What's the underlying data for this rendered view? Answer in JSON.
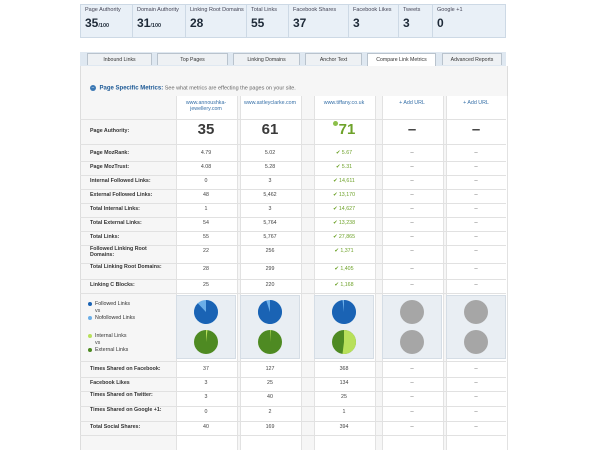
{
  "stats": [
    {
      "label": "Page Authority",
      "value": "35",
      "suffix": "/100"
    },
    {
      "label": "Domain Authority",
      "value": "31",
      "suffix": "/100"
    },
    {
      "label": "Linking Root Domains",
      "value": "28",
      "suffix": ""
    },
    {
      "label": "Total Links",
      "value": "55",
      "suffix": ""
    },
    {
      "label": "Facebook Shares",
      "value": "37",
      "suffix": ""
    },
    {
      "label": "Facebook Likes",
      "value": "3",
      "suffix": ""
    },
    {
      "label": "Tweets",
      "value": "3",
      "suffix": ""
    },
    {
      "label": "Google +1",
      "value": "0",
      "suffix": ""
    }
  ],
  "tabs": [
    "Inbound Links",
    "Top Pages",
    "Linking Domains",
    "Anchor Text",
    "Compare Link Metrics",
    "Advanced Reports"
  ],
  "active_tab": "Compare Link Metrics",
  "section": {
    "collapse_icon": "minus",
    "title": "Page Specific Metrics:",
    "description": "See what metrics are effecting the pages on your site."
  },
  "columns": [
    {
      "line1": "www.annoushka-",
      "line2": "jewellery.com"
    },
    {
      "line1": "www.astleyclarke.com",
      "line2": ""
    },
    {
      "line1": "www.tiffany.co.uk",
      "line2": ""
    },
    {
      "line1": "+ Add URL",
      "line2": ""
    },
    {
      "line1": "+ Add URL",
      "line2": ""
    }
  ],
  "page_authority": {
    "label": "Page Authority:",
    "values": [
      "35",
      "61",
      "71",
      "–",
      "–"
    ]
  },
  "rows": [
    {
      "label": "Page MozRank:",
      "values": [
        "4.79",
        "5.02",
        "✔ 5.67",
        "--",
        "--"
      ]
    },
    {
      "label": "Page MozTrust:",
      "values": [
        "4.08",
        "5.28",
        "✔ 5.31",
        "--",
        "--"
      ]
    },
    {
      "label": "Internal Followed Links:",
      "values": [
        "0",
        "3",
        "✔ 14,611",
        "--",
        "--"
      ]
    },
    {
      "label": "External Followed Links:",
      "values": [
        "48",
        "5,462",
        "✔ 13,170",
        "--",
        "--"
      ]
    },
    {
      "label": "Total Internal Links:",
      "values": [
        "1",
        "3",
        "✔ 14,627",
        "--",
        "--"
      ]
    },
    {
      "label": "Total External Links:",
      "values": [
        "54",
        "5,764",
        "✔ 13,238",
        "--",
        "--"
      ]
    },
    {
      "label": "Total Links:",
      "values": [
        "55",
        "5,767",
        "✔ 27,865",
        "--",
        "--"
      ]
    },
    {
      "label": "Followed Linking Root Domains:",
      "values": [
        "22",
        "256",
        "✔ 1,371",
        "--",
        "--"
      ]
    },
    {
      "label": "Total Linking Root Domains:",
      "values": [
        "28",
        "299",
        "✔ 1,405",
        "--",
        "--"
      ]
    },
    {
      "label": "Linking C Blocks:",
      "values": [
        "25",
        "220",
        "✔ 1,168",
        "--",
        "--"
      ]
    }
  ],
  "green_column": 2,
  "legend": {
    "followed": "Followed Links",
    "vs1": "vs",
    "nofollowed": "Nofollowed Links",
    "internal": "Internal Links",
    "vs2": "vs",
    "external": "External Links"
  },
  "social_rows": [
    {
      "label": "Times Shared on Facebook:",
      "values": [
        "37",
        "127",
        "368",
        "--",
        "--"
      ]
    },
    {
      "label": "Facebook Likes",
      "values": [
        "3",
        "25",
        "134",
        "--",
        "--"
      ]
    },
    {
      "label": "Times Shared on Twitter:",
      "values": [
        "3",
        "40",
        "25",
        "--",
        "--"
      ]
    },
    {
      "label": "Times Shared on Google +1:",
      "values": [
        "0",
        "2",
        "1",
        "--",
        "--"
      ]
    },
    {
      "label": "Total Social Shares:",
      "values": [
        "40",
        "169",
        "394",
        "--",
        "--"
      ]
    }
  ],
  "colors": {
    "followed": "#1a63b4",
    "nofollowed": "#6aaee8",
    "internal": "#b8e05a",
    "external": "#4e8a22",
    "empty": "#a6a6a6",
    "green_text": "#6ea22a"
  },
  "pies": [
    {
      "followed_fraction": 0.88,
      "internal_fraction": 0.02
    },
    {
      "followed_fraction": 0.95,
      "internal_fraction": 0.01
    },
    {
      "followed_fraction": 0.98,
      "internal_fraction": 0.52
    },
    {
      "empty": true
    },
    {
      "empty": true
    }
  ]
}
